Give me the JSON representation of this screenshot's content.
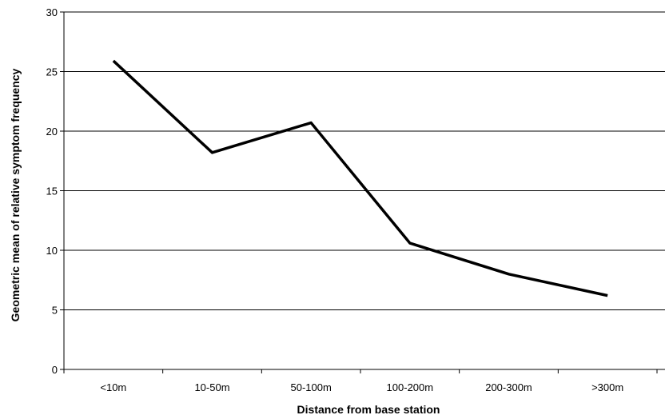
{
  "chart_data": {
    "type": "line",
    "title": "",
    "xlabel": "Distance from base station",
    "ylabel": "Geometric mean of relative symptom frequency",
    "categories": [
      "<10m",
      "10-50m",
      "50-100m",
      "100-200m",
      "200-300m",
      ">300m"
    ],
    "series": [
      {
        "values": [
          25.9,
          18.2,
          20.7,
          10.6,
          8.0,
          6.2
        ]
      }
    ],
    "ylim": [
      0,
      30
    ],
    "yticks": [
      0,
      5,
      10,
      15,
      20,
      25,
      30
    ],
    "grid": true,
    "legend": "none",
    "line_color": "#000000",
    "grid_color": "#000000"
  }
}
